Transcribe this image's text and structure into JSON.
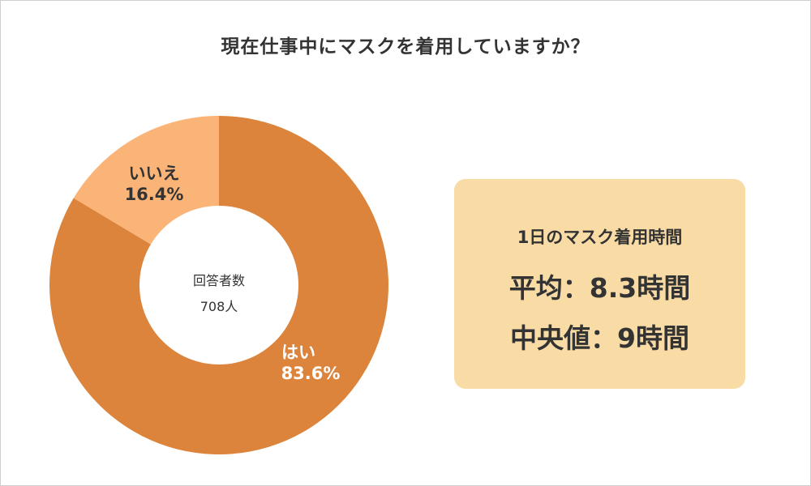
{
  "title": "現在仕事中にマスクを着用していますか？",
  "chart_data": {
    "type": "pie",
    "donut": true,
    "title": "現在仕事中にマスクを着用していますか？",
    "center_label": [
      "回答者数",
      "708人"
    ],
    "slices": [
      {
        "label": "はい",
        "value": 83.6,
        "value_label": "83.6%",
        "color": "#dc843c",
        "text_color": "#ffffff"
      },
      {
        "label": "いいえ",
        "value": 16.4,
        "value_label": "16.4%",
        "color": "#fbb477",
        "text_color": "#333333"
      }
    ]
  },
  "info_box": {
    "title": "1日のマスク着用時間",
    "average": "平均：8.3時間",
    "median": "中央値：9時間"
  },
  "colors": {
    "box_background": "#f9dba6",
    "text": "#333333",
    "border": "#cfcfcf"
  }
}
